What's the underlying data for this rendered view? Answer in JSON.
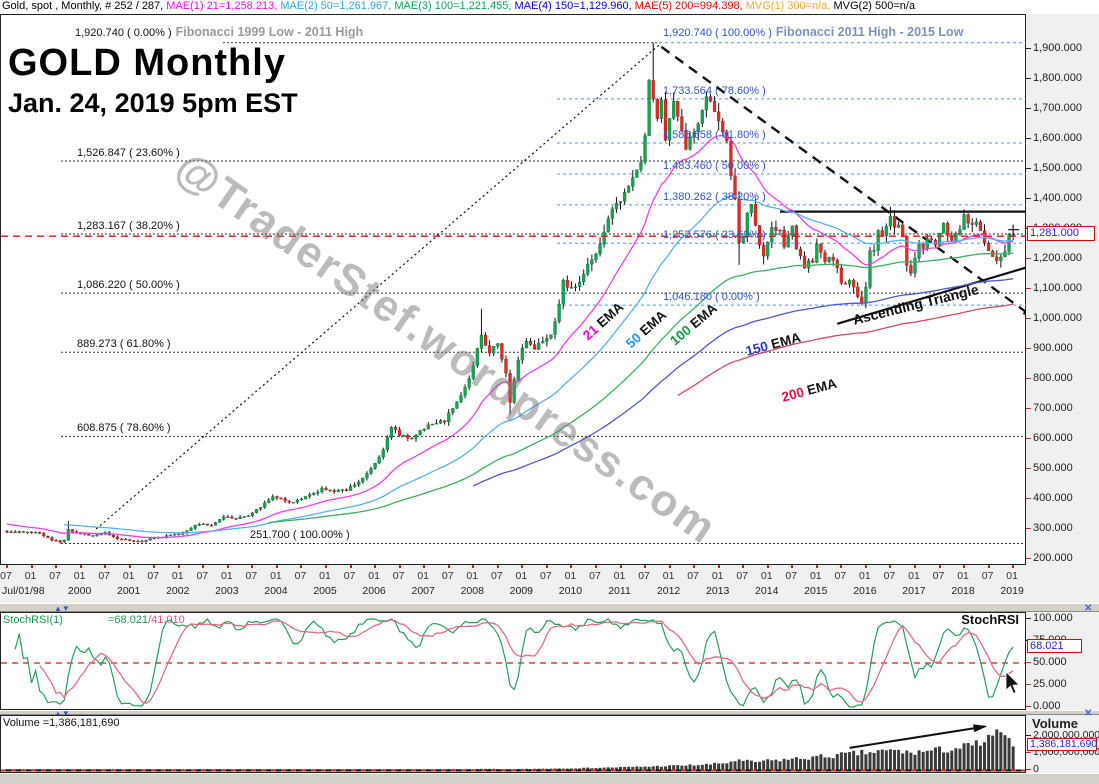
{
  "header": {
    "segments": [
      {
        "text": "Gold, spot , Monthly, # 252 / 287, ",
        "color": "#000000"
      },
      {
        "text": "MAE(1) 21=1,258.213, ",
        "color": "#ff00ff"
      },
      {
        "text": "MAE(2) 50=1,261.967, ",
        "color": "#2aa7e0"
      },
      {
        "text": "MAE(3) 100=1,221.455, ",
        "color": "#00a651"
      },
      {
        "text": "MAE(4) 150=1,129.960, ",
        "color": "#0000ee"
      },
      {
        "text": "MAE(5) 200=994.398, ",
        "color": "#ee0000"
      },
      {
        "text": "MVG(1) 300=n/a, ",
        "color": "#f5a623"
      },
      {
        "text": "MVG(2) 500=n/a",
        "color": "#000000"
      }
    ]
  },
  "title": {
    "main": "GOLD Monthly",
    "subtitle": "Jan. 24, 2019 5pm EST"
  },
  "watermark": "@TraderStef.wordpress.com",
  "chart_data": {
    "type": "candlestick",
    "instrument": "Gold, spot",
    "timeframe": "Monthly",
    "x_axis": {
      "start_label": "Jul/01/98",
      "years": [
        2000,
        2001,
        2002,
        2003,
        2004,
        2005,
        2006,
        2007,
        2008,
        2009,
        2010,
        2011,
        2012,
        2013,
        2014,
        2015,
        2016,
        2017,
        2018,
        2019
      ],
      "minor_labels": [
        "07",
        "01"
      ]
    },
    "y_axis": {
      "min": 200,
      "max": 1900,
      "tick_step": 100,
      "current_price": 1281.0,
      "current_price_label": "1,281.000"
    },
    "monthly_closes": {
      "m0_date": "1998-07",
      "anchors": [
        [
          -35,
          383
        ],
        [
          -30,
          388
        ],
        [
          -24,
          368
        ],
        [
          -18,
          345
        ],
        [
          -12,
          330
        ],
        [
          -6,
          298
        ],
        [
          -1,
          293
        ],
        [
          0,
          291
        ],
        [
          2,
          288
        ],
        [
          5,
          292
        ],
        [
          8,
          286
        ],
        [
          11,
          263
        ],
        [
          13,
          256
        ],
        [
          14,
          264
        ],
        [
          15,
          299
        ],
        [
          16,
          291
        ],
        [
          18,
          284
        ],
        [
          21,
          276
        ],
        [
          24,
          288
        ],
        [
          27,
          266
        ],
        [
          30,
          262
        ],
        [
          33,
          258
        ],
        [
          36,
          271
        ],
        [
          39,
          277
        ],
        [
          42,
          282
        ],
        [
          45,
          303
        ],
        [
          47,
          318
        ],
        [
          50,
          312
        ],
        [
          53,
          342
        ],
        [
          56,
          334
        ],
        [
          59,
          346
        ],
        [
          62,
          374
        ],
        [
          65,
          407
        ],
        [
          67,
          399
        ],
        [
          69,
          387
        ],
        [
          72,
          399
        ],
        [
          75,
          419
        ],
        [
          77,
          435
        ],
        [
          80,
          427
        ],
        [
          83,
          429
        ],
        [
          86,
          459
        ],
        [
          89,
          498
        ],
        [
          92,
          562
        ],
        [
          94,
          642
        ],
        [
          96,
          613
        ],
        [
          99,
          599
        ],
        [
          102,
          638
        ],
        [
          105,
          653
        ],
        [
          107,
          661
        ],
        [
          110,
          727
        ],
        [
          113,
          798
        ],
        [
          115,
          898
        ],
        [
          116,
          948
        ],
        [
          118,
          888
        ],
        [
          120,
          918
        ],
        [
          122,
          818
        ],
        [
          123,
          722
        ],
        [
          124,
          798
        ],
        [
          125,
          868
        ],
        [
          127,
          928
        ],
        [
          129,
          898
        ],
        [
          131,
          928
        ],
        [
          133,
          948
        ],
        [
          135,
          1046
        ],
        [
          136,
          1128
        ],
        [
          138,
          1098
        ],
        [
          140,
          1128
        ],
        [
          142,
          1178
        ],
        [
          144,
          1208
        ],
        [
          146,
          1298
        ],
        [
          147,
          1338
        ],
        [
          149,
          1388
        ],
        [
          151,
          1418
        ],
        [
          153,
          1478
        ],
        [
          155,
          1518
        ],
        [
          156,
          1608
        ],
        [
          157,
          1788
        ],
        [
          158,
          1738
        ],
        [
          159,
          1678
        ],
        [
          160,
          1718
        ],
        [
          161,
          1588
        ],
        [
          162,
          1678
        ],
        [
          163,
          1738
        ],
        [
          164,
          1678
        ],
        [
          165,
          1638
        ],
        [
          166,
          1578
        ],
        [
          167,
          1598
        ],
        [
          169,
          1648
        ],
        [
          171,
          1738
        ],
        [
          173,
          1698
        ],
        [
          174,
          1668
        ],
        [
          175,
          1618
        ],
        [
          176,
          1588
        ],
        [
          177,
          1468
        ],
        [
          178,
          1398
        ],
        [
          179,
          1248
        ],
        [
          180,
          1278
        ],
        [
          181,
          1358
        ],
        [
          182,
          1388
        ],
        [
          183,
          1318
        ],
        [
          184,
          1248
        ],
        [
          185,
          1218
        ],
        [
          186,
          1248
        ],
        [
          187,
          1308
        ],
        [
          188,
          1298
        ],
        [
          189,
          1288
        ],
        [
          190,
          1248
        ],
        [
          191,
          1278
        ],
        [
          192,
          1308
        ],
        [
          193,
          1228
        ],
        [
          194,
          1208
        ],
        [
          195,
          1168
        ],
        [
          196,
          1198
        ],
        [
          197,
          1188
        ],
        [
          198,
          1258
        ],
        [
          199,
          1218
        ],
        [
          200,
          1188
        ],
        [
          201,
          1198
        ],
        [
          202,
          1188
        ],
        [
          203,
          1168
        ],
        [
          204,
          1128
        ],
        [
          205,
          1118
        ],
        [
          206,
          1138
        ],
        [
          207,
          1108
        ],
        [
          208,
          1068
        ],
        [
          209,
          1062
        ],
        [
          210,
          1108
        ],
        [
          211,
          1228
        ],
        [
          212,
          1238
        ],
        [
          213,
          1288
        ],
        [
          214,
          1268
        ],
        [
          215,
          1318
        ],
        [
          216,
          1352
        ],
        [
          217,
          1308
        ],
        [
          218,
          1318
        ],
        [
          219,
          1268
        ],
        [
          220,
          1178
        ],
        [
          221,
          1148
        ],
        [
          222,
          1208
        ],
        [
          223,
          1248
        ],
        [
          224,
          1228
        ],
        [
          225,
          1258
        ],
        [
          226,
          1268
        ],
        [
          227,
          1248
        ],
        [
          228,
          1288
        ],
        [
          229,
          1318
        ],
        [
          230,
          1278
        ],
        [
          231,
          1268
        ],
        [
          232,
          1278
        ],
        [
          233,
          1298
        ],
        [
          234,
          1338
        ],
        [
          235,
          1318
        ],
        [
          236,
          1324
        ],
        [
          237,
          1314
        ],
        [
          238,
          1298
        ],
        [
          239,
          1248
        ],
        [
          240,
          1218
        ],
        [
          241,
          1198
        ],
        [
          242,
          1188
        ],
        [
          243,
          1214
        ],
        [
          244,
          1228
        ],
        [
          245,
          1278
        ],
        [
          246,
          1281
        ]
      ]
    },
    "candle_extremes": [
      {
        "m": 13,
        "low": 251.7
      },
      {
        "m": 15,
        "high": 326
      },
      {
        "m": 116,
        "high": 1033.9
      },
      {
        "m": 123,
        "low": 681
      },
      {
        "m": 158,
        "high": 1920.74
      },
      {
        "m": 179,
        "low": 1180.5
      },
      {
        "m": 185,
        "low": 1182
      },
      {
        "m": 209,
        "low": 1046.18
      },
      {
        "m": 216,
        "high": 1375
      },
      {
        "m": 234,
        "high": 1366
      }
    ],
    "emas": [
      {
        "period": 21,
        "label": "21",
        "color_line": "#f03ce8",
        "color_label": "#e800d8",
        "visible_from_month": 0
      },
      {
        "period": 50,
        "label": "50",
        "color_line": "#53b1f0",
        "color_label": "#1f97e8",
        "visible_from_month": 14
      },
      {
        "period": 100,
        "label": "100",
        "color_line": "#3fae63",
        "color_label": "#0f9a44",
        "visible_from_month": 64
      },
      {
        "period": 150,
        "label": "150",
        "color_line": "#4d57d8",
        "color_label": "#2736cc",
        "visible_from_month": 114
      },
      {
        "period": 200,
        "label": "200",
        "color_line": "#d44a66",
        "color_label": "#e0113c",
        "visible_from_month": 164
      }
    ],
    "fib_1999_2011": {
      "header_value": "1,920.740 ( 0.00% )",
      "header_label": "Fibonacci 1999 Low - 2011 High",
      "top_price": 1920.74,
      "levels": [
        {
          "price": 1526.847,
          "label": "1,526.847 ( 23.60% )"
        },
        {
          "price": 1283.167,
          "label": "1,283.167 ( 38.20% )"
        },
        {
          "price": 1086.22,
          "label": "1,086.220 ( 50.00% )"
        },
        {
          "price": 889.273,
          "label": "889.273 ( 61.80% )"
        },
        {
          "price": 608.875,
          "label": "608.875 ( 78.60% )"
        },
        {
          "price": 251.7,
          "label": "251.700 ( 100.00% )",
          "label_x": 250
        }
      ]
    },
    "fib_2011_2015": {
      "header_value": "1,920.740 ( 100.00% )",
      "header_label": "Fibonacci 2011 High - 2015 Low",
      "top_price": 1920.74,
      "levels": [
        {
          "price": 1733.564,
          "label": "1,733.564 ( 78.60% )"
        },
        {
          "price": 1586.658,
          "label": "1,586.658 ( 61.80% )"
        },
        {
          "price": 1483.46,
          "label": "1,483.460 ( 50.00% )"
        },
        {
          "price": 1380.262,
          "label": "1,380.262 ( 38.20% )"
        },
        {
          "price": 1252.576,
          "label": "1,252.576 ( 23.60% )"
        },
        {
          "price": 1046.18,
          "label": "1,046.180 ( 0.00% )"
        }
      ]
    },
    "trendlines": [
      {
        "name": "rising-support-dotted",
        "from_m": 21.8,
        "from_p": 300,
        "to_m": 159.4,
        "to_p": 1913,
        "style": "dotted"
      },
      {
        "name": "descending-resistance-dashed",
        "from_m": 160,
        "from_p": 1907,
        "to_m": 251,
        "to_p": 1005,
        "style": "dashed",
        "arrow_end": true
      },
      {
        "name": "triangle-top",
        "from_m": 189,
        "from_p": 1358,
        "to_m": 252,
        "to_p": 1358,
        "style": "solid"
      },
      {
        "name": "triangle-bottom",
        "from_m": 203,
        "from_p": 984,
        "to_m": 252,
        "to_p": 1183,
        "style": "solid"
      }
    ],
    "annotations": {
      "ascending_triangle": "Ascending Triangle"
    },
    "stochrsi": {
      "label": "StochRSI(1)",
      "green_value": "=68.021",
      "red_value": "/41.010",
      "panel_label": "StochRSI",
      "box_label": "68.021",
      "ticks": [
        100,
        75,
        50,
        25,
        0
      ],
      "midline": 50,
      "last_green": 68.021,
      "last_red": 41.01
    },
    "volume": {
      "label": "Volume =1,386,181,690",
      "panel_label": "Volume",
      "box_label": "1,386,181,690",
      "tick_values": [
        2000000000,
        1000000000,
        0
      ],
      "tick_labels": [
        "2,000,000,000",
        "1,000,000,000",
        "0"
      ],
      "last": 1386181690,
      "anchors_millions": [
        [
          0,
          14
        ],
        [
          40,
          18
        ],
        [
          80,
          26
        ],
        [
          100,
          36
        ],
        [
          112,
          50
        ],
        [
          118,
          62
        ],
        [
          122,
          44
        ],
        [
          128,
          66
        ],
        [
          136,
          96
        ],
        [
          144,
          130
        ],
        [
          152,
          170
        ],
        [
          160,
          230
        ],
        [
          166,
          270
        ],
        [
          172,
          330
        ],
        [
          176,
          420
        ],
        [
          178,
          560
        ],
        [
          180,
          520
        ],
        [
          183,
          470
        ],
        [
          186,
          540
        ],
        [
          190,
          610
        ],
        [
          194,
          680
        ],
        [
          198,
          760
        ],
        [
          202,
          840
        ],
        [
          206,
          930
        ],
        [
          210,
          1010
        ],
        [
          214,
          1090
        ],
        [
          218,
          1140
        ],
        [
          220,
          1010
        ],
        [
          224,
          1080
        ],
        [
          228,
          1170
        ],
        [
          232,
          1270
        ],
        [
          236,
          1430
        ],
        [
          239,
          1640
        ],
        [
          241,
          1890
        ],
        [
          243,
          2380
        ],
        [
          244,
          1760
        ],
        [
          245,
          1580
        ],
        [
          246,
          1386.18169
        ]
      ],
      "arrow": {
        "from_m": 206,
        "from_v_millions": 1300,
        "to_m": 239,
        "to_v_millions": 2550
      }
    },
    "colors": {
      "candle_up": "#0da84f",
      "candle_down": "#e8281e",
      "wick": "#111111",
      "fib1_line": "#333333",
      "fib2_line": "#5b8ff2",
      "fib2_text": "#2e55c8",
      "current_price_line": "#ee1111",
      "stoch_green": "#22a058",
      "stoch_pink": "#e06a86",
      "volume_bar": "#3a3a3a"
    }
  }
}
